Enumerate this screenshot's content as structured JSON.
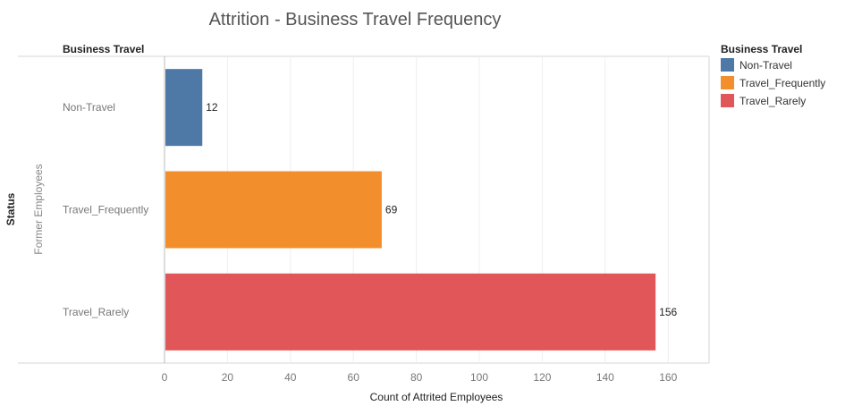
{
  "chart_data": {
    "type": "bar",
    "orientation": "horizontal",
    "title": "Attrition - Business Travel Frequency",
    "row_header": "Business Travel",
    "status_label": "Status",
    "status_value": "Former Employees",
    "xlabel": "Count of Attrited Employees",
    "categories": [
      "Non-Travel",
      "Travel_Frequently",
      "Travel_Rarely"
    ],
    "values": [
      12,
      69,
      156
    ],
    "colors": [
      "#4e79a7",
      "#f28e2b",
      "#e15759"
    ],
    "xlim": [
      0,
      173
    ],
    "xticks": [
      0,
      20,
      40,
      60,
      80,
      100,
      120,
      140,
      160
    ],
    "grid": true,
    "legend": {
      "title": "Business Travel",
      "placement": "right",
      "items": [
        "Non-Travel",
        "Travel_Frequently",
        "Travel_Rarely"
      ]
    }
  }
}
